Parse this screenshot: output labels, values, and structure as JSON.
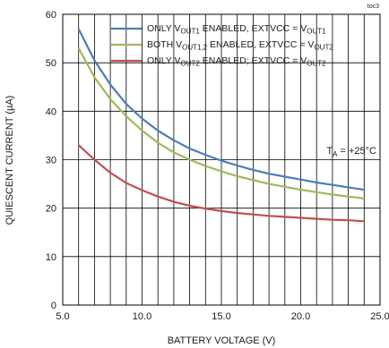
{
  "tag": "toc3",
  "annotation": {
    "main": "T",
    "sub": "A",
    "rest": " = +25°C"
  },
  "chart_data": {
    "type": "line",
    "xlabel": "BATTERY VOLTAGE (V)",
    "ylabel": "QUIESCENT CURRENT (µA)",
    "xlim": [
      5.0,
      25.0
    ],
    "ylim": [
      0,
      60
    ],
    "x_ticks": [
      "5.0",
      "10.0",
      "15.0",
      "20.0",
      "25.0"
    ],
    "y_ticks": [
      "0",
      "10",
      "20",
      "30",
      "40",
      "50",
      "60"
    ],
    "grid": true,
    "legend_position": "top-right",
    "series": [
      {
        "color": "#4a7ebb",
        "legend": {
          "p1": "ONLY V",
          "s1": "OUT1",
          "p2": " ENABLED, EXTVCC = V",
          "s2": "OUT1"
        },
        "x": [
          6,
          7,
          8,
          9,
          10,
          11,
          12,
          13,
          14,
          15,
          16,
          17,
          18,
          19,
          20,
          21,
          22,
          23,
          24
        ],
        "y": [
          57,
          50.5,
          45.5,
          41.5,
          38.5,
          36,
          34,
          32.3,
          31,
          29.8,
          28.8,
          27.9,
          27.1,
          26.5,
          25.9,
          25.3,
          24.8,
          24.3,
          23.8
        ]
      },
      {
        "color": "#9bbb59",
        "legend": {
          "p1": "BOTH V",
          "s1": "OUT1,2",
          "p2": " ENABLED, EXTVCC = V",
          "s2": "OUT2"
        },
        "x": [
          6,
          7,
          8,
          9,
          10,
          11,
          12,
          13,
          14,
          15,
          16,
          17,
          18,
          19,
          20,
          21,
          22,
          23,
          24
        ],
        "y": [
          53,
          47,
          42.5,
          39,
          36,
          33.5,
          31.5,
          30,
          28.7,
          27.6,
          26.6,
          25.8,
          25,
          24.4,
          23.8,
          23.3,
          22.8,
          22.4,
          22
        ]
      },
      {
        "color": "#c0504d",
        "legend": {
          "p1": "ONLY V",
          "s1": "OUT2",
          "p2": " ENABLED; EXTVCC = V",
          "s2": "OUT2"
        },
        "x": [
          6,
          7,
          8,
          9,
          10,
          11,
          12,
          13,
          14,
          15,
          16,
          17,
          18,
          19,
          20,
          21,
          22,
          23,
          24
        ],
        "y": [
          33,
          30,
          27.3,
          25.2,
          23.7,
          22.4,
          21.3,
          20.5,
          19.9,
          19.4,
          19,
          18.7,
          18.4,
          18.2,
          18,
          17.8,
          17.6,
          17.5,
          17.3
        ]
      }
    ]
  }
}
